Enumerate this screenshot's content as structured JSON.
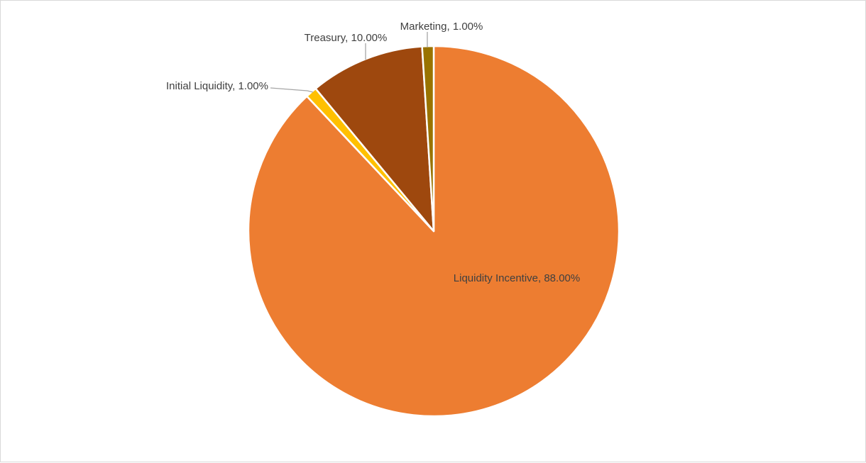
{
  "chart_data": {
    "type": "pie",
    "title": "",
    "categories": [
      "Liquidity Incentive",
      "Initial Liquidity",
      "Treasury",
      "Marketing"
    ],
    "values": [
      88,
      1,
      10,
      1
    ],
    "labels": [
      "Liquidity Incentive, 88.00%",
      "Initial Liquidity, 1.00%",
      "Treasury, 10.00%",
      "Marketing, 1.00%"
    ],
    "colors": [
      "#ED7D31",
      "#FFC000",
      "#9E480E",
      "#997300"
    ],
    "legend": "none"
  }
}
